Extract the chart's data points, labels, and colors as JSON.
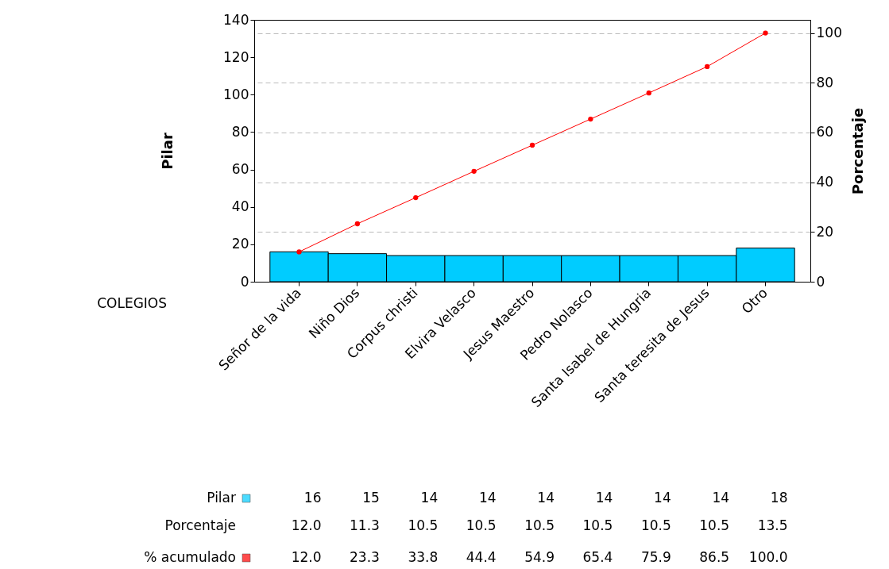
{
  "chart_data": {
    "type": "bar",
    "xlabel": "COLEGIOS",
    "ylabel": "Pilar",
    "y2label": "Porcentaje",
    "categories": [
      "Señor de la vida",
      "Niño Dios",
      "Corpus christi",
      "Elvira Velasco",
      "Jesus Maestro",
      "Pedro Nolasco",
      "Santa Isabel de Hungria",
      "Santa teresita de Jesus",
      "Otro"
    ],
    "series": [
      {
        "name": "Pilar",
        "color": "#00ccff",
        "values": [
          16,
          15,
          14,
          14,
          14,
          14,
          14,
          14,
          18
        ],
        "value_labels": [
          "16",
          "15",
          "14",
          "14",
          "14",
          "14",
          "14",
          "14",
          "18"
        ]
      },
      {
        "name": "% acumulado",
        "type": "line",
        "axis": "y2",
        "color": "#ff0000",
        "values": [
          12.0,
          23.3,
          33.8,
          44.4,
          54.9,
          65.4,
          75.9,
          86.5,
          100.0
        ],
        "value_labels": [
          "12.0",
          "23.3",
          "33.8",
          "44.4",
          "54.9",
          "65.4",
          "75.9",
          "86.5",
          "100.0"
        ]
      }
    ],
    "annotations": [
      "Porcentaje",
      "12.0",
      "11.3",
      "10.5",
      "10.5",
      "10.5",
      "10.5",
      "10.5",
      "10.5",
      "13.5"
    ],
    "ylim": [
      0,
      140
    ],
    "yticks": [
      0,
      20,
      40,
      60,
      80,
      100,
      120,
      140
    ],
    "y2lim": [
      0,
      105.3
    ],
    "y2ticks": [
      0,
      20,
      40,
      60,
      80,
      100
    ],
    "grid": true,
    "legend": "bottom left",
    "marker": "circle",
    "line_style": "solid"
  }
}
